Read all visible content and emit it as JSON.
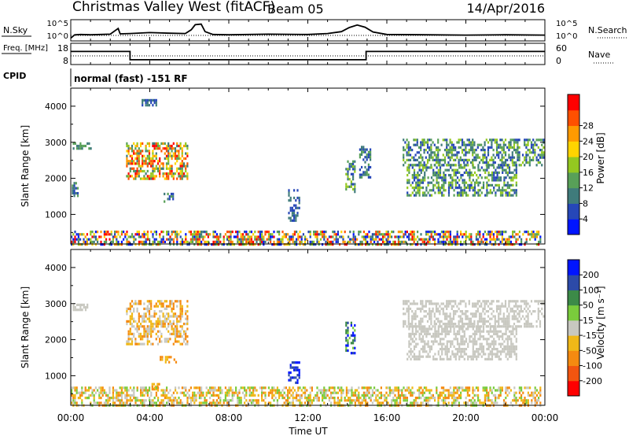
{
  "header": {
    "station": "Christmas Valley West (fitACF)",
    "beam": "Beam 05",
    "date": "14/Apr/2016",
    "mode": "normal (fast) -151 RF"
  },
  "chart_data": [
    {
      "type": "line",
      "panel": "noise",
      "left_label": "N.Sky",
      "right_label": "N.Search",
      "y_scale": "log",
      "left_ticks": [
        "10^5",
        "10^0"
      ],
      "right_ticks": [
        "10^5",
        "10^0"
      ],
      "series": [
        {
          "name": "N.Sky",
          "style": "solid",
          "x": [
            0,
            0.2,
            0.5,
            1,
            1.5,
            2,
            2.4,
            2.5,
            3,
            4,
            5,
            5.8,
            6.1,
            6.3,
            6.6,
            6.8,
            7.2,
            8,
            10,
            12,
            13,
            13.7,
            14.1,
            14.5,
            14.9,
            15.3,
            16,
            18,
            20,
            22,
            24
          ],
          "y": [
            0.15,
            1.2,
            1.3,
            1.2,
            1.3,
            1.4,
            3.2,
            1.5,
            1.6,
            1.9,
            1.7,
            1.6,
            2.8,
            4.4,
            4.6,
            2.2,
            1.3,
            1.2,
            1.4,
            1.3,
            1.6,
            2.2,
            3.5,
            4.3,
            3.6,
            2.1,
            1.3,
            1.2,
            1.1,
            1.2,
            1.1
          ]
        },
        {
          "name": "N.Search",
          "style": "dotted",
          "x": [
            0,
            24
          ],
          "y": [
            1.0,
            1.0
          ]
        }
      ]
    },
    {
      "type": "line",
      "panel": "frequency",
      "left_label": "Freq. [MHz]",
      "right_label": "Nave",
      "left_ticks": [
        "18",
        "8"
      ],
      "right_ticks": [
        "60",
        "0"
      ],
      "series": [
        {
          "name": "Freq.",
          "style": "solid",
          "x": [
            0,
            3.0,
            3.0,
            14.95,
            14.95,
            24
          ],
          "y": [
            14.5,
            14.5,
            9.5,
            9.5,
            14.5,
            14.5
          ]
        },
        {
          "name": "Nave",
          "style": "dotted",
          "x": [
            0,
            24
          ],
          "y": [
            23,
            23
          ]
        }
      ]
    },
    {
      "type": "heatmap",
      "panel": "power",
      "ylabel": "Slant Range [km]",
      "xlim": [
        0,
        24
      ],
      "ylim": [
        180,
        4500
      ],
      "yticks": [
        1000,
        2000,
        3000,
        4000
      ],
      "colorbar": {
        "label": "Power [dB]",
        "ticks": [
          "4",
          "8",
          "12",
          "16",
          "20",
          "24",
          "28"
        ],
        "colors": [
          "#0015ff",
          "#2647b8",
          "#3f7b7b",
          "#58a058",
          "#94c820",
          "#ffd400",
          "#ff9a00",
          "#ff5000",
          "#ff0000"
        ]
      },
      "regions": [
        {
          "x": [
            0.1,
            1.0
          ],
          "y": [
            2800,
            3000
          ],
          "c": [
            2,
            3
          ]
        },
        {
          "x": [
            0.05,
            0.35
          ],
          "y": [
            1500,
            1900
          ],
          "c": [
            1,
            3
          ]
        },
        {
          "x": [
            2.8,
            5.9
          ],
          "y": [
            2000,
            3000
          ],
          "c": [
            2,
            8
          ]
        },
        {
          "x": [
            3.5,
            4.3
          ],
          "y": [
            4000,
            4200
          ],
          "c": [
            1,
            2
          ]
        },
        {
          "x": [
            4.7,
            5.2
          ],
          "y": [
            1350,
            1600
          ],
          "c": [
            1,
            3
          ]
        },
        {
          "x": [
            11.0,
            11.6
          ],
          "y": [
            800,
            1700
          ],
          "c": [
            1,
            2
          ]
        },
        {
          "x": [
            13.9,
            14.4
          ],
          "y": [
            1600,
            2500
          ],
          "c": [
            1,
            4
          ]
        },
        {
          "x": [
            14.6,
            15.2
          ],
          "y": [
            2000,
            2900
          ],
          "c": [
            1,
            3
          ]
        },
        {
          "x": [
            16.8,
            23.9
          ],
          "y": [
            2400,
            3100
          ],
          "c": [
            1,
            4
          ]
        },
        {
          "x": [
            17.0,
            22.6
          ],
          "y": [
            1500,
            2400
          ],
          "c": [
            1,
            4
          ]
        },
        {
          "x": [
            0.0,
            23.8
          ],
          "y": [
            200,
            550
          ],
          "c": [
            0,
            8
          ]
        }
      ]
    },
    {
      "type": "heatmap",
      "panel": "velocity",
      "ylabel": "Slant Range [km]",
      "xlabel": "Time UT",
      "xlim": [
        0,
        24
      ],
      "ylim": [
        180,
        4500
      ],
      "xticks": [
        "00:00",
        "04:00",
        "08:00",
        "12:00",
        "16:00",
        "20:00",
        "00:00"
      ],
      "yticks": [
        1000,
        2000,
        3000,
        4000
      ],
      "colorbar": {
        "label": "Velocity [m s⁻¹]",
        "ticks": [
          "200",
          "100",
          "50",
          "15",
          "-15",
          "-50",
          "-100",
          "-200"
        ],
        "colors": [
          "#0015ff",
          "#2c4aa8",
          "#3c8a48",
          "#7acc3c",
          "#c8c8c0",
          "#f0b818",
          "#f58a10",
          "#f25510",
          "#ff0000"
        ]
      },
      "regions": [
        {
          "x": [
            0.1,
            1.0
          ],
          "y": [
            2800,
            3000
          ],
          "c": [
            4,
            4
          ]
        },
        {
          "x": [
            2.8,
            5.9
          ],
          "y": [
            1900,
            3100
          ],
          "c": [
            4,
            6
          ]
        },
        {
          "x": [
            4.5,
            5.3
          ],
          "y": [
            1350,
            1550
          ],
          "c": [
            5,
            6
          ]
        },
        {
          "x": [
            4.0,
            4.5
          ],
          "y": [
            600,
            800
          ],
          "c": [
            5,
            6
          ]
        },
        {
          "x": [
            11.0,
            11.6
          ],
          "y": [
            800,
            1400
          ],
          "c": [
            0,
            1
          ]
        },
        {
          "x": [
            13.9,
            14.4
          ],
          "y": [
            1600,
            2500
          ],
          "c": [
            0,
            3
          ]
        },
        {
          "x": [
            16.8,
            23.9
          ],
          "y": [
            2400,
            3100
          ],
          "c": [
            4,
            4
          ]
        },
        {
          "x": [
            17.0,
            22.6
          ],
          "y": [
            1450,
            2400
          ],
          "c": [
            4,
            4
          ]
        },
        {
          "x": [
            0.0,
            23.8
          ],
          "y": [
            200,
            700
          ],
          "c": [
            3,
            6
          ]
        }
      ]
    }
  ]
}
